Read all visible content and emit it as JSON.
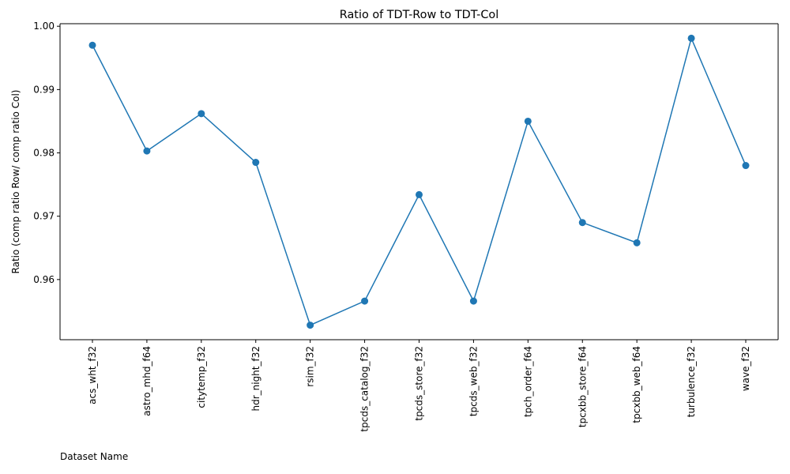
{
  "chart_data": {
    "type": "line",
    "title": "Ratio of TDT-Row to TDT-Col",
    "xlabel": "Dataset Name",
    "ylabel": "Ratio (comp ratio Row/ comp ratio Col)",
    "categories": [
      "acs_wht_f32",
      "astro_mhd_f64",
      "citytemp_f32",
      "hdr_night_f32",
      "rsim_f32",
      "tpcds_catalog_f32",
      "tpcds_store_f32",
      "tpcds_web_f32",
      "tpch_order_f64",
      "tpcxbb_store_f64",
      "tpcxbb_web_f64",
      "turbulence_f32",
      "wave_f32"
    ],
    "series": [
      {
        "values": [
          0.997,
          0.9803,
          0.9862,
          0.9785,
          0.9528,
          0.9566,
          0.9734,
          0.9566,
          0.985,
          0.969,
          0.9658,
          0.9981,
          0.978
        ],
        "color": "#1f77b4",
        "marker": "circle"
      }
    ],
    "ylim": [
      0.9505,
      1.0004
    ],
    "yticks": [
      "0.96",
      "0.97",
      "0.98",
      "0.99",
      "1.00"
    ],
    "grid": false,
    "legend": "none"
  }
}
